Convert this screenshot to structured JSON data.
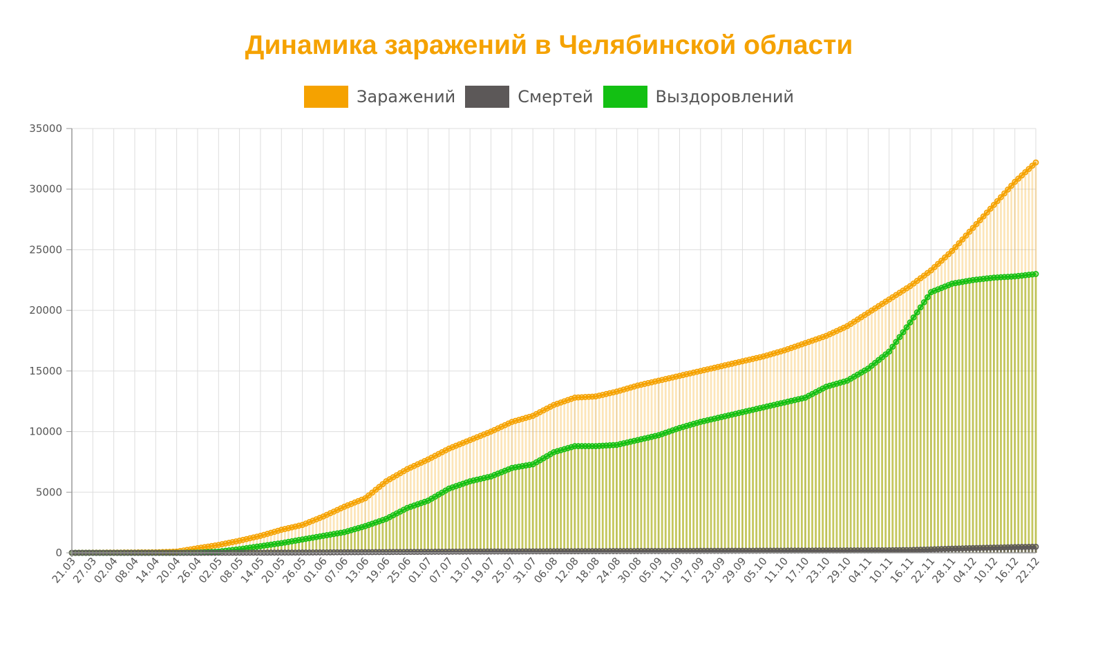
{
  "chart_data": {
    "type": "bar",
    "title": "Динамика заражений в Челябинской области",
    "xlabel": "",
    "ylabel": "",
    "ylim": [
      0,
      35000
    ],
    "yticks": [
      0,
      5000,
      10000,
      15000,
      20000,
      25000,
      30000,
      35000
    ],
    "grid": true,
    "legend_position": "top-center",
    "colors": {
      "infections": "#f5a200",
      "deaths": "#5c5858",
      "recoveries": "#13c013"
    },
    "x": [
      "21.03",
      "27.03",
      "02.04",
      "08.04",
      "14.04",
      "20.04",
      "26.04",
      "02.05",
      "08.05",
      "14.05",
      "20.05",
      "26.05",
      "01.06",
      "07.06",
      "13.06",
      "19.06",
      "25.06",
      "01.07",
      "07.07",
      "13.07",
      "19.07",
      "25.07",
      "31.07",
      "06.08",
      "12.08",
      "18.08",
      "24.08",
      "30.08",
      "05.09",
      "11.09",
      "17.09",
      "23.09",
      "29.09",
      "05.10",
      "11.10",
      "17.10",
      "23.10",
      "29.10",
      "04.11",
      "10.11",
      "16.11",
      "22.11",
      "28.11",
      "04.12",
      "10.12",
      "16.12",
      "22.12"
    ],
    "series": [
      {
        "name": "Заражений",
        "values": [
          0,
          10,
          20,
          30,
          40,
          100,
          380,
          650,
          1000,
          1400,
          1900,
          2300,
          3000,
          3800,
          4500,
          5900,
          6900,
          7700,
          8600,
          9300,
          10000,
          10800,
          11300,
          12200,
          12800,
          12900,
          13300,
          13800,
          14200,
          14600,
          15000,
          15400,
          15800,
          16200,
          16700,
          17300,
          17900,
          18700,
          19800,
          20900,
          22000,
          23300,
          24900,
          26800,
          28700,
          30600,
          32200
        ]
      },
      {
        "name": "Смертей",
        "values": [
          0,
          0,
          0,
          0,
          0,
          0,
          2,
          5,
          10,
          15,
          20,
          25,
          35,
          45,
          55,
          65,
          75,
          85,
          95,
          105,
          110,
          115,
          120,
          125,
          130,
          135,
          140,
          145,
          150,
          155,
          160,
          165,
          170,
          175,
          180,
          185,
          190,
          195,
          200,
          210,
          230,
          280,
          340,
          390,
          430,
          470,
          500
        ]
      },
      {
        "name": "Выздоровлений",
        "values": [
          0,
          0,
          0,
          0,
          0,
          0,
          20,
          100,
          300,
          550,
          800,
          1100,
          1400,
          1700,
          2200,
          2800,
          3700,
          4300,
          5300,
          5900,
          6300,
          7000,
          7300,
          8300,
          8800,
          8800,
          8900,
          9300,
          9700,
          10300,
          10800,
          11200,
          11600,
          12000,
          12400,
          12800,
          13700,
          14200,
          15200,
          16600,
          19000,
          21500,
          22200,
          22500,
          22700,
          22800,
          23000
        ]
      }
    ]
  }
}
